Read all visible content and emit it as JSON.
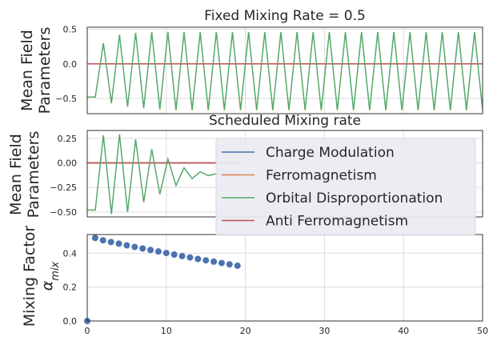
{
  "chart_data": [
    {
      "type": "line",
      "title": "Fixed Mixing Rate = 0.5",
      "ylabel": [
        "Mean Field",
        "Parameters"
      ],
      "xlim": [
        0,
        49
      ],
      "ylim": [
        -0.72,
        0.53
      ],
      "yticks": [
        "0.5",
        "0.0",
        "−0.5"
      ],
      "ytick_values": [
        0.5,
        0.0,
        -0.5
      ],
      "x": [
        0,
        1,
        2,
        3,
        4,
        5,
        6,
        7,
        8,
        9,
        10,
        11,
        12,
        13,
        14,
        15,
        16,
        17,
        18,
        19,
        20,
        21,
        22,
        23,
        24,
        25,
        26,
        27,
        28,
        29,
        30,
        31,
        32,
        33,
        34,
        35,
        36,
        37,
        38,
        39,
        40,
        41,
        42,
        43,
        44,
        45,
        46,
        47,
        48,
        49
      ],
      "series": [
        {
          "name": "Charge Modulation",
          "color": "#4c72b0",
          "values": [
            0,
            0,
            0,
            0,
            0,
            0,
            0,
            0,
            0,
            0,
            0,
            0,
            0,
            0,
            0,
            0,
            0,
            0,
            0,
            0,
            0,
            0,
            0,
            0,
            0,
            0,
            0,
            0,
            0,
            0,
            0,
            0,
            0,
            0,
            0,
            0,
            0,
            0,
            0,
            0,
            0,
            0,
            0,
            0,
            0,
            0,
            0,
            0,
            0,
            0
          ]
        },
        {
          "name": "Ferromagnetism",
          "color": "#dd8452",
          "values": [
            0,
            0,
            0,
            0,
            0,
            0,
            0,
            0,
            0,
            0,
            0,
            0,
            0,
            0,
            0,
            0,
            0,
            0,
            0,
            0,
            0,
            0,
            0,
            0,
            0,
            0,
            0,
            0,
            0,
            0,
            0,
            0,
            0,
            0,
            0,
            0,
            0,
            0,
            0,
            0,
            0,
            0,
            0,
            0,
            0,
            0,
            0,
            0,
            0,
            0
          ]
        },
        {
          "name": "Anti Ferromagnetism",
          "color": "#c44e52",
          "values": [
            0,
            0,
            0,
            0,
            0,
            0,
            0,
            0,
            0,
            0,
            0,
            0,
            0,
            0,
            0,
            0,
            0,
            0,
            0,
            0,
            0,
            0,
            0,
            0,
            0,
            0,
            0,
            0,
            0,
            0,
            0,
            0,
            0,
            0,
            0,
            0,
            0,
            0,
            0,
            0,
            0,
            0,
            0,
            0,
            0,
            0,
            0,
            0,
            0,
            0
          ]
        },
        {
          "name": "Orbital Disproportionation",
          "color": "#55a868",
          "values": [
            -0.48,
            -0.48,
            0.3,
            -0.57,
            0.42,
            -0.62,
            0.45,
            -0.64,
            0.46,
            -0.66,
            0.46,
            -0.67,
            0.46,
            -0.67,
            0.46,
            -0.67,
            0.46,
            -0.67,
            0.46,
            -0.67,
            0.46,
            -0.67,
            0.46,
            -0.67,
            0.46,
            -0.67,
            0.46,
            -0.67,
            0.46,
            -0.67,
            0.46,
            -0.67,
            0.46,
            -0.67,
            0.46,
            -0.67,
            0.46,
            -0.67,
            0.46,
            -0.67,
            0.46,
            -0.67,
            0.46,
            -0.67,
            0.46,
            -0.67,
            0.46,
            -0.67,
            0.46,
            -0.67
          ]
        }
      ]
    },
    {
      "type": "line",
      "title": "Scheduled Mixing rate",
      "ylabel": [
        "Mean Field",
        "Parameters"
      ],
      "xlim": [
        0,
        49
      ],
      "ylim": [
        -0.55,
        0.33
      ],
      "yticks": [
        "0.25",
        "0.00",
        "−0.25",
        "−0.50"
      ],
      "ytick_values": [
        0.25,
        0.0,
        -0.25,
        -0.5
      ],
      "x": [
        0,
        1,
        2,
        3,
        4,
        5,
        6,
        7,
        8,
        9,
        10,
        11,
        12,
        13,
        14,
        15,
        16,
        17,
        18,
        19
      ],
      "series": [
        {
          "name": "Charge Modulation",
          "color": "#4c72b0",
          "values": [
            0,
            0,
            0,
            0,
            0,
            0,
            0,
            0,
            0,
            0,
            0,
            0,
            0,
            0,
            0,
            0,
            0,
            0,
            0,
            0
          ]
        },
        {
          "name": "Ferromagnetism",
          "color": "#dd8452",
          "values": [
            0,
            0,
            0,
            0,
            0,
            0,
            0,
            0,
            0,
            0,
            0,
            0,
            0,
            0,
            0,
            0,
            0,
            0,
            0,
            0
          ]
        },
        {
          "name": "Anti Ferromagnetism",
          "color": "#c44e52",
          "values": [
            0,
            0,
            0,
            0,
            0,
            0,
            0,
            0,
            0,
            0,
            0,
            0,
            0,
            0,
            0,
            0,
            0,
            0,
            0,
            0
          ]
        },
        {
          "name": "Orbital Disproportionation",
          "color": "#55a868",
          "values": [
            -0.48,
            -0.48,
            0.28,
            -0.52,
            0.29,
            -0.5,
            0.24,
            -0.4,
            0.14,
            -0.32,
            0.04,
            -0.23,
            -0.05,
            -0.16,
            -0.09,
            -0.13,
            -0.11,
            -0.12,
            -0.11,
            -0.12
          ]
        }
      ],
      "legend": {
        "placement": "lower-right",
        "entries": [
          {
            "label": "Charge Modulation",
            "color": "#4c72b0"
          },
          {
            "label": "Ferromagnetism",
            "color": "#dd8452"
          },
          {
            "label": "Orbital Disproportionation",
            "color": "#55a868"
          },
          {
            "label": "Anti Ferromagnetism",
            "color": "#c44e52"
          }
        ]
      }
    },
    {
      "type": "scatter",
      "title": "",
      "ylabel": [
        "Mixing Factor",
        "α_mix"
      ],
      "xlim": [
        0,
        50
      ],
      "ylim": [
        0,
        0.51
      ],
      "xticks": [
        "0",
        "10",
        "20",
        "30",
        "40",
        "50"
      ],
      "xtick_values": [
        0,
        10,
        20,
        30,
        40,
        50
      ],
      "yticks": [
        "0.4",
        "0.2",
        "0.0"
      ],
      "ytick_values": [
        0.4,
        0.2,
        0.0
      ],
      "color": "#4c72b0",
      "x": [
        0,
        1,
        2,
        3,
        4,
        5,
        6,
        7,
        8,
        9,
        10,
        11,
        12,
        13,
        14,
        15,
        16,
        17,
        18,
        19
      ],
      "y": [
        0.0,
        0.49,
        0.476,
        0.466,
        0.456,
        0.446,
        0.437,
        0.428,
        0.419,
        0.41,
        0.401,
        0.392,
        0.383,
        0.375,
        0.366,
        0.358,
        0.35,
        0.342,
        0.334,
        0.326
      ]
    }
  ]
}
